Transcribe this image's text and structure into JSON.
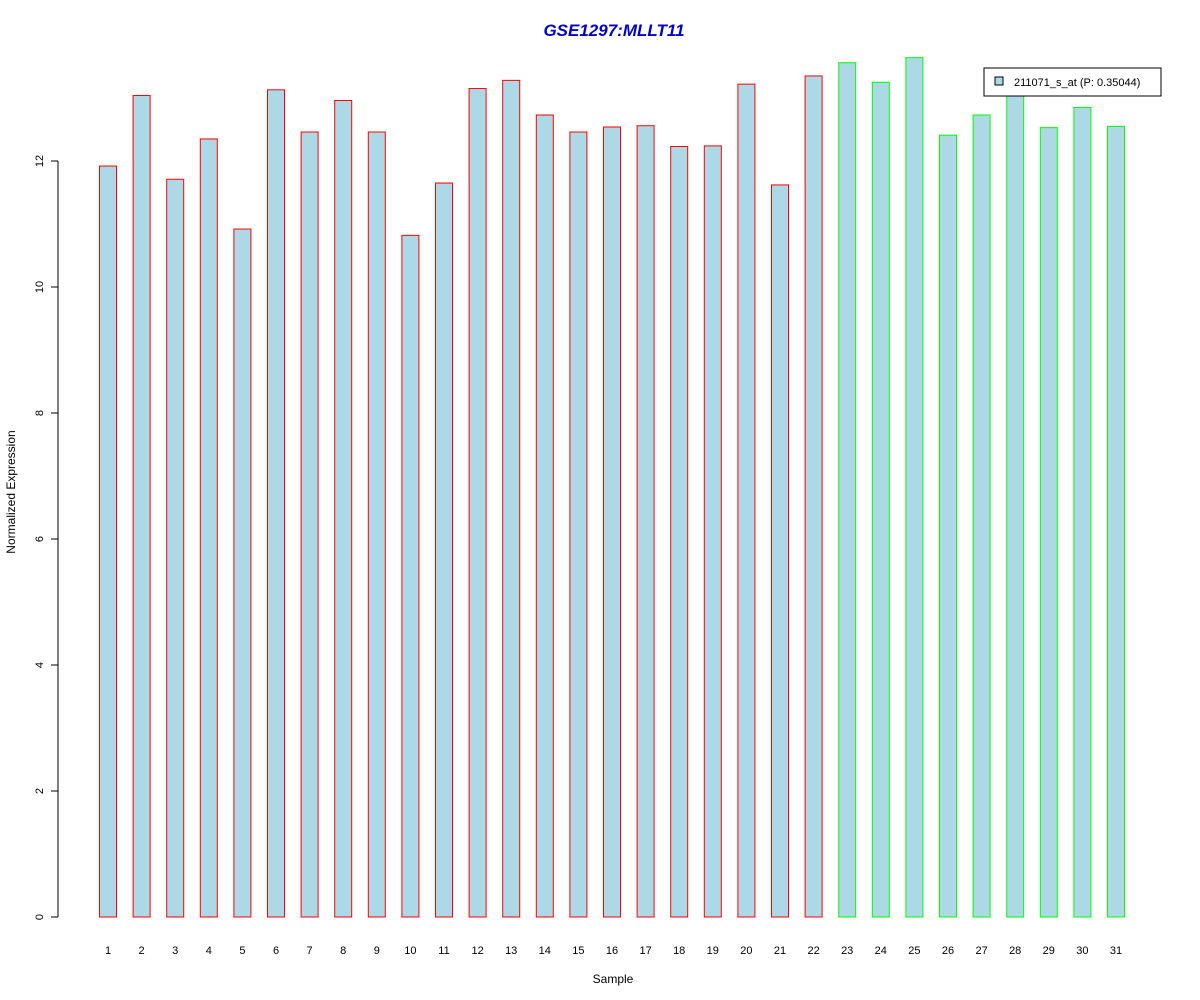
{
  "chart_data": {
    "type": "bar",
    "title": "GSE1297:MLLT11",
    "xlabel": "Sample",
    "ylabel": "Normalized Expression",
    "ylim": [
      0,
      14
    ],
    "y_ticks": [
      0,
      2,
      4,
      6,
      8,
      10,
      12
    ],
    "grid": false,
    "legend_position": "top-right",
    "categories": [
      "1",
      "2",
      "3",
      "4",
      "5",
      "6",
      "7",
      "8",
      "9",
      "10",
      "11",
      "12",
      "13",
      "14",
      "15",
      "16",
      "17",
      "18",
      "19",
      "20",
      "21",
      "22",
      "23",
      "24",
      "25",
      "26",
      "27",
      "28",
      "29",
      "30",
      "31"
    ],
    "series": [
      {
        "name": "211071_s_at (P: 0.35044)",
        "values": [
          11.92,
          13.04,
          11.71,
          12.35,
          10.92,
          13.13,
          12.46,
          12.96,
          12.46,
          10.82,
          11.65,
          13.15,
          13.28,
          12.73,
          12.46,
          12.54,
          12.56,
          12.23,
          12.24,
          13.22,
          11.62,
          13.35,
          13.56,
          13.25,
          13.64,
          12.41,
          12.73,
          13.04,
          12.53,
          12.85,
          12.55
        ],
        "group": [
          "a",
          "a",
          "a",
          "a",
          "a",
          "a",
          "a",
          "a",
          "a",
          "a",
          "a",
          "a",
          "a",
          "a",
          "a",
          "a",
          "a",
          "a",
          "a",
          "a",
          "a",
          "a",
          "b",
          "b",
          "b",
          "b",
          "b",
          "b",
          "b",
          "b",
          "b"
        ]
      }
    ],
    "colors": {
      "fill": "#add8e6",
      "border_group_a": "#ff0000",
      "border_group_b": "#00ff00",
      "title": "#0000cd",
      "axis": "#000000"
    }
  }
}
